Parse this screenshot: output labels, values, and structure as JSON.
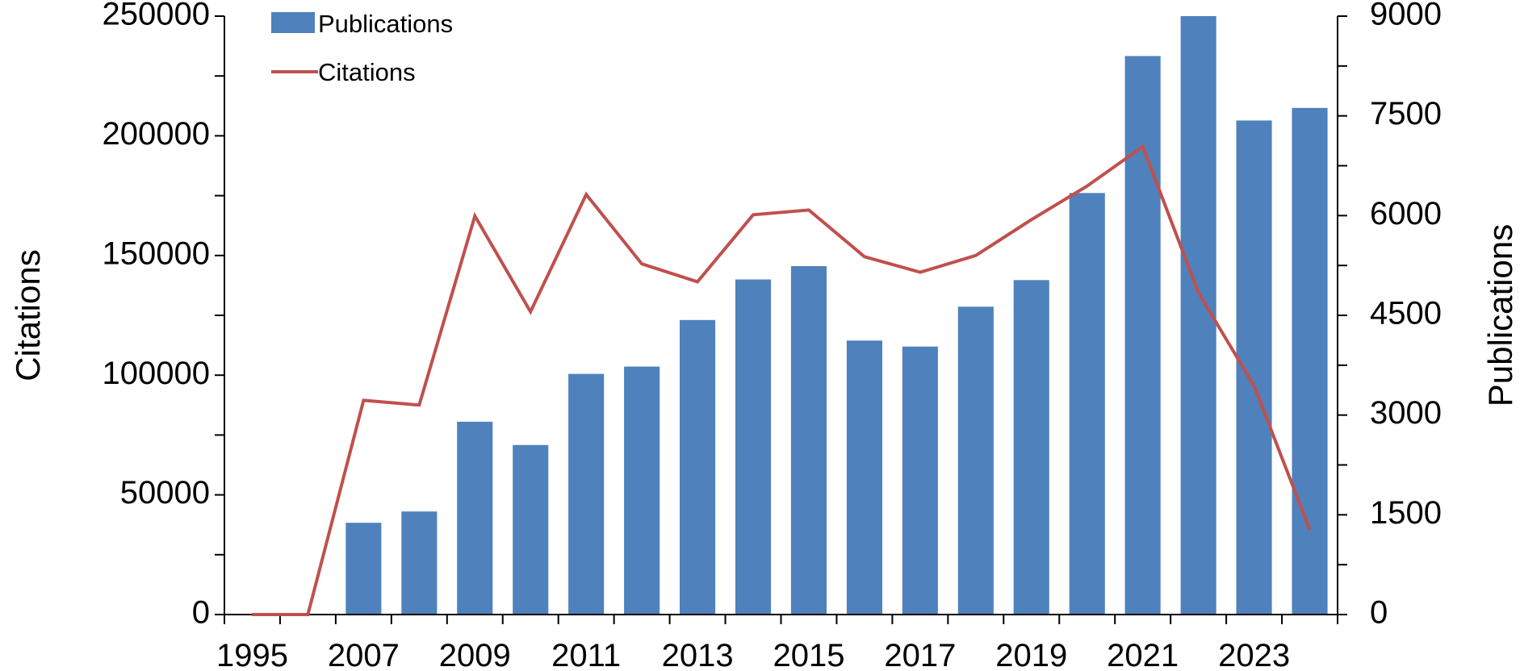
{
  "chart_data": {
    "type": "bar+line",
    "categories": [
      "1995",
      "2006",
      "2007",
      "2008",
      "2009",
      "2010",
      "2011",
      "2012",
      "2013",
      "2014",
      "2015",
      "2016",
      "2017",
      "2018",
      "2019",
      "2020",
      "2021",
      "2022",
      "2023",
      "2024"
    ],
    "x_tick_labels": [
      "1995",
      "2007",
      "2009",
      "2011",
      "2013",
      "2015",
      "2017",
      "2019",
      "2021",
      "2023"
    ],
    "series": [
      {
        "name": "Publications",
        "type": "bar",
        "axis": "right",
        "color": "#4f81bd",
        "values": [
          0,
          0,
          1380,
          1550,
          2900,
          2550,
          3620,
          3730,
          4430,
          5040,
          5240,
          4120,
          4030,
          4630,
          5030,
          6340,
          8400,
          9000,
          7430,
          7620
        ]
      },
      {
        "name": "Citations",
        "type": "line",
        "axis": "left",
        "color": "#c0504d",
        "values": [
          0,
          0,
          89500,
          87500,
          166500,
          126500,
          175500,
          146500,
          139000,
          167000,
          169000,
          149500,
          143000,
          150000,
          165000,
          179000,
          195500,
          134500,
          95500,
          35500
        ]
      }
    ],
    "left_axis": {
      "label": "Citations",
      "min": 0,
      "max": 250000,
      "ticks": [
        "0",
        "50000",
        "100000",
        "150000",
        "200000",
        "250000"
      ]
    },
    "right_axis": {
      "label": "Publications",
      "min": 0,
      "max": 9000,
      "ticks": [
        "0",
        "1500",
        "3000",
        "4500",
        "6000",
        "7500",
        "9000"
      ]
    },
    "legend": {
      "position": "top-left",
      "entries": [
        "Publications",
        "Citations"
      ]
    }
  }
}
